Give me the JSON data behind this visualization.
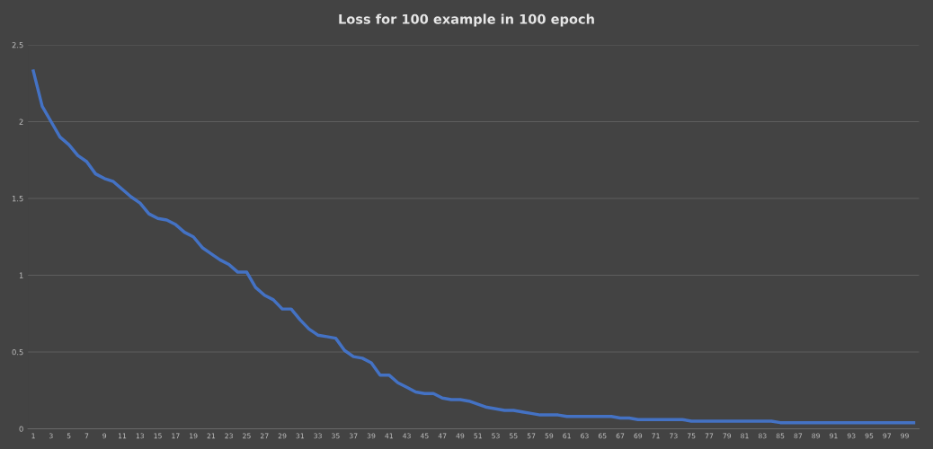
{
  "chart_data": {
    "type": "line",
    "title": "Loss for 100 example in 100 epoch",
    "categories": [
      "1",
      null,
      "3",
      null,
      "5",
      null,
      "7",
      null,
      "9",
      null,
      "11",
      null,
      "13",
      null,
      "15",
      null,
      "17",
      null,
      "19",
      null,
      "21",
      null,
      "23",
      null,
      "25",
      null,
      "27",
      null,
      "29",
      null,
      "31",
      null,
      "33",
      null,
      "35",
      null,
      "37",
      null,
      "39",
      null,
      "41",
      null,
      "43",
      null,
      "45",
      null,
      "47",
      null,
      "49",
      null,
      "51",
      null,
      "53",
      null,
      "55",
      null,
      "57",
      null,
      "59",
      null,
      "61",
      null,
      "63",
      null,
      "65",
      null,
      "67",
      null,
      "69",
      null,
      "71",
      null,
      "73",
      null,
      "75",
      null,
      "77",
      null,
      "79",
      null,
      "81",
      null,
      "83",
      null,
      "85",
      null,
      "87",
      null,
      "89",
      null,
      "91",
      null,
      "93",
      null,
      "95",
      null,
      "97",
      null,
      "99",
      null
    ],
    "series": [
      {
        "color": "#4472c4",
        "values": [
          2.33,
          2.1,
          2.0,
          1.9,
          1.85,
          1.78,
          1.74,
          1.66,
          1.63,
          1.61,
          1.56,
          1.51,
          1.47,
          1.4,
          1.37,
          1.36,
          1.33,
          1.28,
          1.25,
          1.18,
          1.14,
          1.1,
          1.07,
          1.02,
          1.02,
          0.92,
          0.87,
          0.84,
          0.78,
          0.78,
          0.71,
          0.65,
          0.61,
          0.6,
          0.59,
          0.51,
          0.47,
          0.46,
          0.43,
          0.35,
          0.35,
          0.3,
          0.27,
          0.24,
          0.23,
          0.23,
          0.2,
          0.19,
          0.19,
          0.18,
          0.16,
          0.14,
          0.13,
          0.12,
          0.12,
          0.11,
          0.1,
          0.09,
          0.09,
          0.09,
          0.08,
          0.08,
          0.08,
          0.08,
          0.08,
          0.08,
          0.07,
          0.07,
          0.06,
          0.06,
          0.06,
          0.06,
          0.06,
          0.06,
          0.05,
          0.05,
          0.05,
          0.05,
          0.05,
          0.05,
          0.05,
          0.05,
          0.05,
          0.05,
          0.04,
          0.04,
          0.04,
          0.04,
          0.04,
          0.04,
          0.04,
          0.04,
          0.04,
          0.04,
          0.04,
          0.04,
          0.04,
          0.04,
          0.04,
          0.04
        ]
      }
    ],
    "ylim": [
      0,
      2.5
    ],
    "yticks": [
      0,
      0.5,
      1,
      1.5,
      2,
      2.5
    ],
    "grid": "y",
    "marker": "none",
    "line_style": "solid",
    "legend": false
  }
}
